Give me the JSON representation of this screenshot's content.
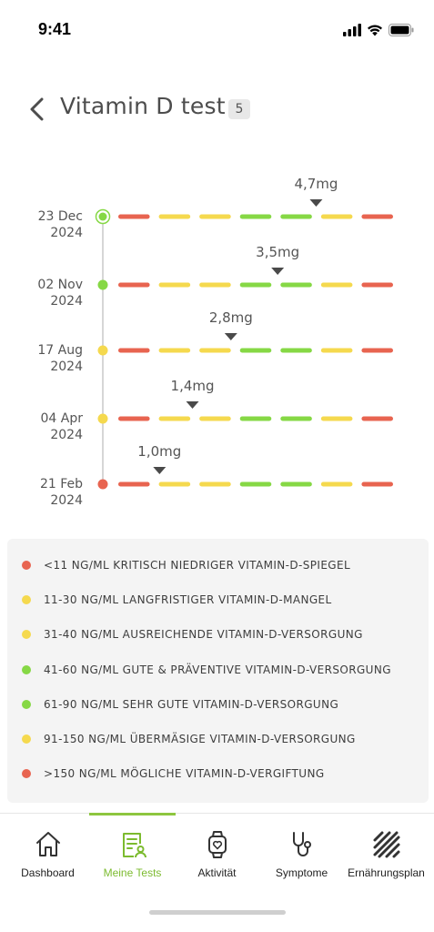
{
  "status_bar": {
    "time": "9:41"
  },
  "header": {
    "title": "Vitamin D test",
    "count": "5"
  },
  "colors": {
    "red": "#e86450",
    "yellow": "#f5d94e",
    "green": "#86d845",
    "accent": "#8dc63f",
    "line": "#c8c8c8"
  },
  "scale_segments": [
    "red",
    "yellow",
    "yellow",
    "green",
    "green",
    "yellow",
    "red"
  ],
  "tests": [
    {
      "date": "23 Dec",
      "year": "2024",
      "value": "4,7mg",
      "position": 0.72,
      "status": "green",
      "current": true
    },
    {
      "date": "02 Nov",
      "year": "2024",
      "value": "3,5mg",
      "position": 0.58,
      "status": "green",
      "current": false
    },
    {
      "date": "17 Aug",
      "year": "2024",
      "value": "2,8mg",
      "position": 0.41,
      "status": "yellow",
      "current": false
    },
    {
      "date": "04 Apr",
      "year": "2024",
      "value": "1,4mg",
      "position": 0.27,
      "status": "yellow",
      "current": false
    },
    {
      "date": "21 Feb",
      "year": "2024",
      "value": "1,0mg",
      "position": 0.15,
      "status": "red",
      "current": false
    }
  ],
  "legend": [
    {
      "color": "red",
      "text": "<11 NG/ML KRITISCH NIEDRIGER VITAMIN-D-SPIEGEL"
    },
    {
      "color": "yellow",
      "text": "11-30 NG/ML LANGFRISTIGER VITAMIN-D-MANGEL"
    },
    {
      "color": "yellow",
      "text": "31-40 NG/ML AUSREICHENDE VITAMIN-D-VERSORGUNG"
    },
    {
      "color": "green",
      "text": "41-60 NG/ML GUTE & PRÄVENTIVE VITAMIN-D-VERSORGUNG"
    },
    {
      "color": "green",
      "text": "61-90 NG/ML SEHR GUTE VITAMIN-D-VERSORGUNG"
    },
    {
      "color": "yellow",
      "text": "91-150 NG/ML ÜBERMÄSIGE VITAMIN-D-VERSORGUNG"
    },
    {
      "color": "red",
      "text": ">150 NG/ML MÖGLICHE VITAMIN-D-VERGIFTUNG"
    }
  ],
  "tabs": [
    {
      "label": "Dashboard",
      "icon": "home-icon",
      "active": false
    },
    {
      "label": "Meine Tests",
      "icon": "test-report-icon",
      "active": true
    },
    {
      "label": "Aktivität",
      "icon": "smartwatch-icon",
      "active": false
    },
    {
      "label": "Symptome",
      "icon": "stethoscope-icon",
      "active": false
    },
    {
      "label": "Ernährungsplan",
      "icon": "nutrition-plan-icon",
      "active": false
    }
  ]
}
